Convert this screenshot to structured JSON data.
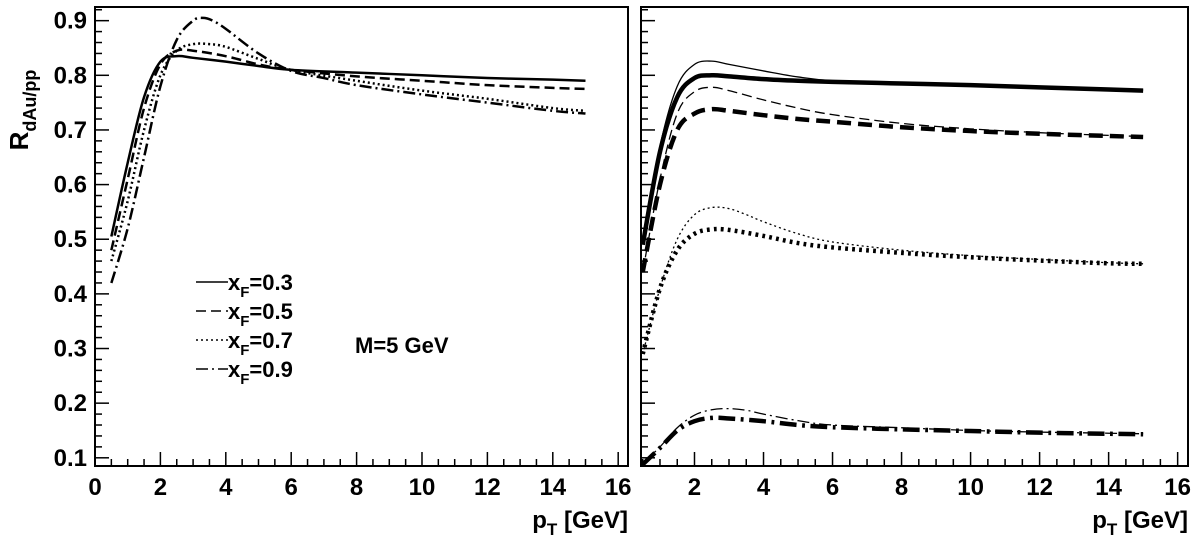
{
  "chart_data": [
    {
      "panel": "left",
      "type": "line",
      "ylabel_main": "R",
      "ylabel_sub": "dAu/pp",
      "xlabel_main": "p",
      "xlabel_sub": "T",
      "xlabel_unit": "[GeV]",
      "xlim": [
        0,
        16.3
      ],
      "ylim": [
        0.085,
        0.925
      ],
      "xticks": [
        "0",
        "2",
        "4",
        "6",
        "8",
        "10",
        "12",
        "14",
        "16"
      ],
      "yticks": [
        "0.1",
        "0.2",
        "0.3",
        "0.4",
        "0.5",
        "0.6",
        "0.7",
        "0.8",
        "0.9"
      ],
      "annotation": "M=5 GeV",
      "legend_placement": "lower-left",
      "series": [
        {
          "name": "x_F=0.3",
          "style": "solid",
          "x": [
            0.5,
            1.0,
            1.5,
            2.0,
            2.5,
            3.0,
            4.0,
            5.0,
            6.0,
            8.0,
            10.0,
            12.0,
            14.0,
            15.0
          ],
          "y": [
            0.505,
            0.64,
            0.76,
            0.825,
            0.835,
            0.832,
            0.825,
            0.817,
            0.81,
            0.805,
            0.8,
            0.795,
            0.792,
            0.79
          ]
        },
        {
          "name": "x_F=0.5",
          "style": "dashed",
          "x": [
            0.5,
            1.0,
            1.5,
            2.0,
            2.5,
            3.0,
            4.0,
            5.0,
            6.0,
            8.0,
            10.0,
            12.0,
            14.0,
            15.0
          ],
          "y": [
            0.48,
            0.61,
            0.74,
            0.82,
            0.845,
            0.845,
            0.835,
            0.82,
            0.81,
            0.798,
            0.79,
            0.782,
            0.777,
            0.775
          ]
        },
        {
          "name": "x_F=0.7",
          "style": "dotted",
          "x": [
            0.5,
            1.0,
            1.5,
            2.0,
            2.5,
            3.0,
            3.5,
            4.0,
            5.0,
            6.0,
            8.0,
            10.0,
            12.0,
            14.0,
            15.0
          ],
          "y": [
            0.46,
            0.57,
            0.7,
            0.8,
            0.845,
            0.857,
            0.857,
            0.852,
            0.83,
            0.81,
            0.79,
            0.772,
            0.757,
            0.74,
            0.735
          ]
        },
        {
          "name": "x_F=0.9",
          "style": "dashdot",
          "x": [
            0.5,
            1.0,
            1.5,
            2.0,
            2.5,
            3.0,
            3.3,
            3.6,
            4.0,
            5.0,
            6.0,
            7.0,
            8.0,
            10.0,
            12.0,
            14.0,
            15.0
          ],
          "y": [
            0.42,
            0.52,
            0.65,
            0.78,
            0.865,
            0.9,
            0.905,
            0.9,
            0.885,
            0.84,
            0.808,
            0.795,
            0.782,
            0.765,
            0.75,
            0.735,
            0.73
          ]
        }
      ]
    },
    {
      "panel": "right",
      "type": "line",
      "xlabel_main": "p",
      "xlabel_sub": "T",
      "xlabel_unit": "[GeV]",
      "xlim": [
        0.45,
        16.3
      ],
      "ylim": [
        0.085,
        0.925
      ],
      "xticks": [
        "2",
        "4",
        "6",
        "8",
        "10",
        "12",
        "14",
        "16"
      ],
      "series": [
        {
          "style": "solid",
          "weight": "thin",
          "x": [
            0.5,
            1.0,
            1.5,
            2.0,
            2.5,
            3.0,
            4.0,
            5.0,
            6.0,
            8.0,
            10.0,
            12.0,
            14.0,
            15.0
          ],
          "y": [
            0.49,
            0.67,
            0.78,
            0.82,
            0.826,
            0.82,
            0.808,
            0.797,
            0.79,
            0.785,
            0.781,
            0.778,
            0.775,
            0.773
          ]
        },
        {
          "style": "solid",
          "weight": "thick",
          "x": [
            0.5,
            1.0,
            1.5,
            2.0,
            2.5,
            3.0,
            4.0,
            5.0,
            6.0,
            8.0,
            10.0,
            12.0,
            14.0,
            15.0
          ],
          "y": [
            0.49,
            0.66,
            0.76,
            0.795,
            0.8,
            0.798,
            0.793,
            0.79,
            0.788,
            0.785,
            0.782,
            0.778,
            0.774,
            0.772
          ]
        },
        {
          "style": "dashed",
          "weight": "thin",
          "x": [
            0.5,
            1.0,
            1.5,
            2.0,
            2.5,
            3.0,
            4.0,
            5.0,
            6.0,
            8.0,
            10.0,
            12.0,
            14.0,
            15.0
          ],
          "y": [
            0.44,
            0.61,
            0.73,
            0.77,
            0.778,
            0.772,
            0.755,
            0.74,
            0.728,
            0.712,
            0.702,
            0.695,
            0.69,
            0.688
          ]
        },
        {
          "style": "dashed",
          "weight": "thick",
          "x": [
            0.5,
            1.0,
            1.5,
            2.0,
            2.5,
            3.0,
            4.0,
            5.0,
            6.0,
            8.0,
            10.0,
            12.0,
            14.0,
            15.0
          ],
          "y": [
            0.44,
            0.6,
            0.7,
            0.73,
            0.738,
            0.735,
            0.727,
            0.72,
            0.715,
            0.705,
            0.698,
            0.693,
            0.689,
            0.687
          ]
        },
        {
          "style": "dotted",
          "weight": "thin",
          "x": [
            0.5,
            1.0,
            1.5,
            2.0,
            2.5,
            3.0,
            3.5,
            4.0,
            5.0,
            6.0,
            8.0,
            10.0,
            12.0,
            14.0,
            15.0
          ],
          "y": [
            0.29,
            0.41,
            0.5,
            0.545,
            0.558,
            0.556,
            0.545,
            0.532,
            0.51,
            0.495,
            0.48,
            0.47,
            0.463,
            0.457,
            0.455
          ]
        },
        {
          "style": "dotted",
          "weight": "thick",
          "x": [
            0.5,
            1.0,
            1.5,
            2.0,
            2.5,
            3.0,
            4.0,
            5.0,
            6.0,
            8.0,
            10.0,
            12.0,
            14.0,
            15.0
          ],
          "y": [
            0.29,
            0.41,
            0.48,
            0.51,
            0.518,
            0.517,
            0.506,
            0.493,
            0.485,
            0.475,
            0.467,
            0.461,
            0.456,
            0.455
          ]
        },
        {
          "style": "dashdot",
          "weight": "thin",
          "x": [
            0.5,
            1.0,
            1.5,
            2.0,
            2.5,
            3.0,
            3.5,
            4.0,
            5.0,
            6.0,
            8.0,
            10.0,
            12.0,
            14.0,
            15.0
          ],
          "y": [
            0.09,
            0.12,
            0.155,
            0.178,
            0.188,
            0.19,
            0.187,
            0.18,
            0.168,
            0.16,
            0.155,
            0.15,
            0.147,
            0.145,
            0.144
          ]
        },
        {
          "style": "dashdot",
          "weight": "thick",
          "x": [
            0.5,
            1.0,
            1.5,
            2.0,
            2.5,
            3.0,
            4.0,
            5.0,
            6.0,
            8.0,
            10.0,
            12.0,
            14.0,
            15.0
          ],
          "y": [
            0.088,
            0.118,
            0.15,
            0.167,
            0.173,
            0.172,
            0.167,
            0.16,
            0.156,
            0.152,
            0.149,
            0.146,
            0.144,
            0.143
          ]
        }
      ]
    }
  ]
}
